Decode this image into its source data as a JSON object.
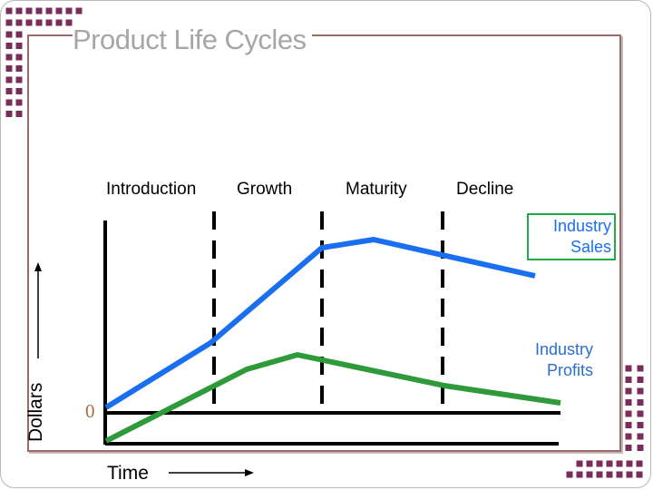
{
  "title": "Product Life Cycles",
  "stages": [
    "Introduction",
    "Growth",
    "Maturity",
    "Decline"
  ],
  "curves": {
    "sales_label": "Industry Sales",
    "sales_label_line1": "Industry",
    "sales_label_line2": "Sales",
    "profits_label_line1": "Industry",
    "profits_label_line2": "Profits"
  },
  "axes": {
    "x_label": "Time",
    "y_label": "Dollars",
    "origin_label": "0"
  },
  "colors": {
    "sales": "#1a6ff0",
    "profits": "#2e9a3a",
    "title": "#a6a6a6",
    "decor_square": "#7a2c5a"
  }
}
